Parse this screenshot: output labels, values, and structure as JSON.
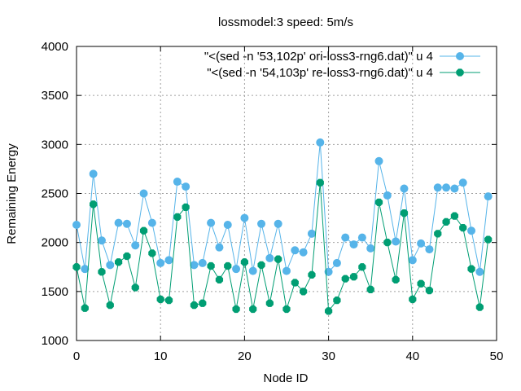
{
  "chart_data": {
    "type": "line",
    "title": "lossmodel:3 speed: 5m/s",
    "xlabel": "Node ID",
    "ylabel": "Remaining Energy",
    "xlim": [
      0,
      50
    ],
    "ylim": [
      1000,
      4000
    ],
    "xticks": [
      0,
      10,
      20,
      30,
      40,
      50
    ],
    "yticks": [
      1000,
      1500,
      2000,
      2500,
      3000,
      3500,
      4000
    ],
    "grid": true,
    "legend_position": "top-right",
    "x": [
      0,
      1,
      2,
      3,
      4,
      5,
      6,
      7,
      8,
      9,
      10,
      11,
      12,
      13,
      14,
      15,
      16,
      17,
      18,
      19,
      20,
      21,
      22,
      23,
      24,
      25,
      26,
      27,
      28,
      29,
      30,
      31,
      32,
      33,
      34,
      35,
      36,
      37,
      38,
      39,
      40,
      41,
      42,
      43,
      44,
      45,
      46,
      47,
      48,
      49
    ],
    "series": [
      {
        "name": "\"<(sed -n '53,102p' ori-loss3-rng6.dat)\" u 4",
        "color": "#56b4e9",
        "marker": "circle",
        "values": [
          2180,
          1730,
          2700,
          2020,
          1770,
          2200,
          2190,
          1970,
          2500,
          2200,
          1790,
          1820,
          2620,
          2570,
          1770,
          1790,
          2200,
          1950,
          2180,
          1730,
          2250,
          1710,
          2190,
          1840,
          2190,
          1710,
          1920,
          1900,
          2090,
          3020,
          1700,
          1790,
          2050,
          1980,
          2050,
          1940,
          2830,
          2480,
          2010,
          2550,
          1820,
          1990,
          1930,
          2560,
          2560,
          2550,
          2610,
          2120,
          1700,
          2470
        ]
      },
      {
        "name": "\"<(sed -n '54,103p' re-loss3-rng6.dat)\" u 4",
        "color": "#009e73",
        "marker": "octagon",
        "values": [
          1750,
          1330,
          2390,
          1700,
          1360,
          1800,
          1860,
          1540,
          2120,
          1890,
          1420,
          1410,
          2260,
          2360,
          1360,
          1380,
          1760,
          1620,
          1760,
          1320,
          1800,
          1320,
          1770,
          1380,
          1830,
          1320,
          1590,
          1500,
          1670,
          2610,
          1300,
          1410,
          1630,
          1650,
          1750,
          1520,
          2410,
          2000,
          1620,
          2300,
          1420,
          1580,
          1510,
          2090,
          2210,
          2270,
          2150,
          1730,
          1340,
          2030
        ]
      }
    ]
  }
}
